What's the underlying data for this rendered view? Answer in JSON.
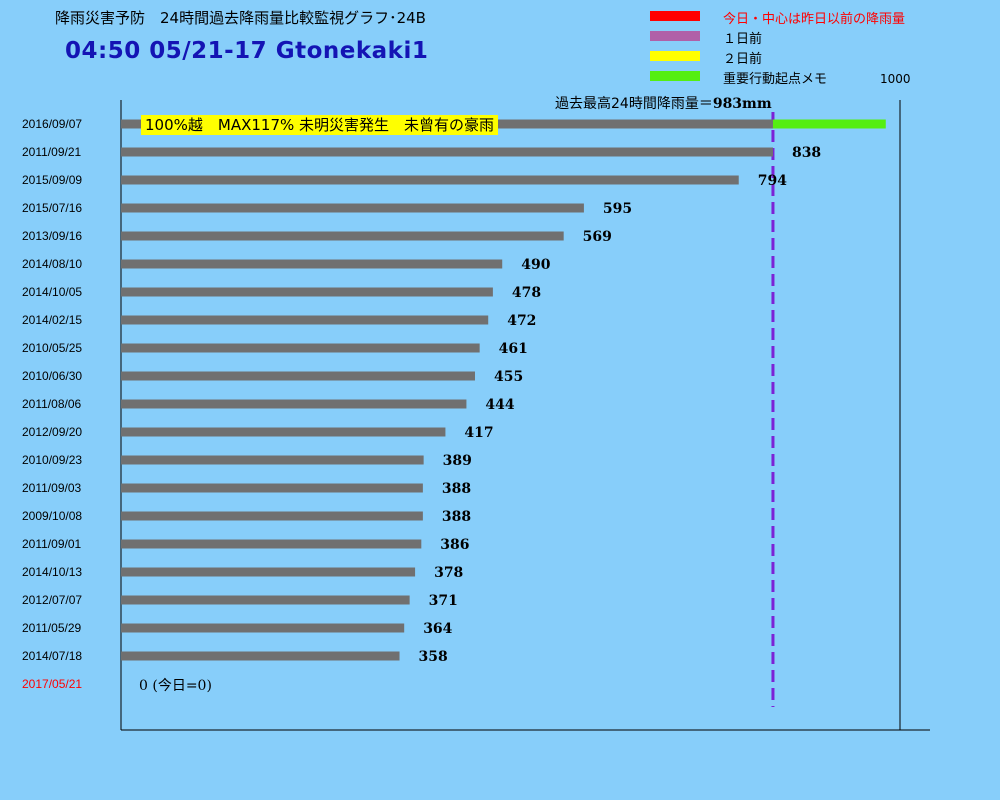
{
  "header": {
    "title": "降雨災害予防　24時間過去降雨量比較監視グラフ･24B",
    "subtitle": "04:50  05/21-17  Gtonekaki1"
  },
  "legend": [
    {
      "label": "今日・中心は昨日以前の降雨量",
      "color": "#ff0000",
      "label_color": "#ff0000"
    },
    {
      "label": "１日前",
      "color": "#b060a8",
      "label_color": "#000000"
    },
    {
      "label": "２日前",
      "color": "#ffff00",
      "label_color": "#000000"
    },
    {
      "label": "重要行動起点メモ",
      "color": "#55ee11",
      "label_color": "#000000"
    }
  ],
  "scale_max_label": "1000",
  "max_note": {
    "text": "過去最高24時間降雨量＝",
    "value": "983mm"
  },
  "banner": "100%越　MAX117% 未明災害発生　未曾有の豪雨",
  "today_label": "0 (今日=0)",
  "colors": {
    "bar": "#707070",
    "marker": "#7b22d6",
    "memo": "#55ee11",
    "today_date": "#ff0000"
  },
  "chart_data": {
    "type": "bar",
    "orientation": "horizontal",
    "xlim": [
      0,
      1000
    ],
    "reference_line": 838,
    "categories": [
      "2016/09/07",
      "2011/09/21",
      "2015/09/09",
      "2015/07/16",
      "2013/09/16",
      "2014/08/10",
      "2014/10/05",
      "2014/02/15",
      "2010/05/25",
      "2010/06/30",
      "2011/08/06",
      "2012/09/20",
      "2010/09/23",
      "2011/09/03",
      "2009/10/08",
      "2011/09/01",
      "2014/10/13",
      "2012/07/07",
      "2011/05/29",
      "2014/07/18",
      "2017/05/21"
    ],
    "values": [
      983,
      838,
      794,
      595,
      569,
      490,
      478,
      472,
      461,
      455,
      444,
      417,
      389,
      388,
      388,
      386,
      378,
      371,
      364,
      358,
      0
    ],
    "value_labels": [
      "",
      "838",
      "794",
      "595",
      "569",
      "490",
      "478",
      "472",
      "461",
      "455",
      "444",
      "417",
      "389",
      "388",
      "388",
      "386",
      "378",
      "371",
      "364",
      "358",
      ""
    ],
    "memo_segment": [
      838,
      983
    ]
  }
}
